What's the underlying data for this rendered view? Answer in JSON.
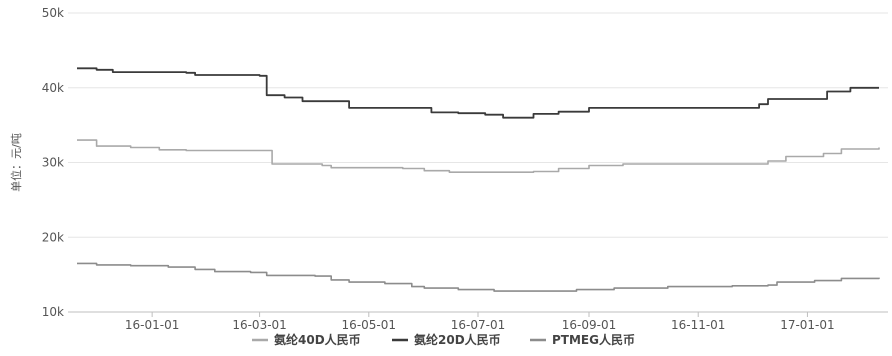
{
  "chart_data": {
    "type": "line",
    "title": "",
    "xlabel": "",
    "ylabel": "单位：元/吨",
    "ylim": [
      10000,
      50000
    ],
    "yticks": [
      {
        "value": 10000,
        "label": "10k"
      },
      {
        "value": 20000,
        "label": "20k"
      },
      {
        "value": 30000,
        "label": "30k"
      },
      {
        "value": 40000,
        "label": "40k"
      },
      {
        "value": 50000,
        "label": "50k"
      }
    ],
    "xlim": [
      "2015-11-15",
      "2017-02-15"
    ],
    "xticks": [
      {
        "value": "2016-01-01",
        "label": "16-01-01"
      },
      {
        "value": "2016-03-01",
        "label": "16-03-01"
      },
      {
        "value": "2016-05-01",
        "label": "16-05-01"
      },
      {
        "value": "2016-07-01",
        "label": "16-07-01"
      },
      {
        "value": "2016-09-01",
        "label": "16-09-01"
      },
      {
        "value": "2016-11-01",
        "label": "16-11-01"
      },
      {
        "value": "2017-01-01",
        "label": "17-01-01"
      }
    ],
    "grid": true,
    "legend_position": "bottom",
    "series": [
      {
        "name": "氨纶40D人民币",
        "color": "#a9a9a9",
        "line_width": 1.6,
        "points": [
          {
            "x": "2015-11-20",
            "y": 33000
          },
          {
            "x": "2015-12-01",
            "y": 32200
          },
          {
            "x": "2015-12-20",
            "y": 32000
          },
          {
            "x": "2016-01-05",
            "y": 31700
          },
          {
            "x": "2016-01-20",
            "y": 31600
          },
          {
            "x": "2016-02-20",
            "y": 31600
          },
          {
            "x": "2016-03-05",
            "y": 31600
          },
          {
            "x": "2016-03-08",
            "y": 29800
          },
          {
            "x": "2016-04-05",
            "y": 29600
          },
          {
            "x": "2016-04-10",
            "y": 29300
          },
          {
            "x": "2016-05-20",
            "y": 29200
          },
          {
            "x": "2016-06-01",
            "y": 28900
          },
          {
            "x": "2016-06-15",
            "y": 28700
          },
          {
            "x": "2016-07-20",
            "y": 28700
          },
          {
            "x": "2016-08-01",
            "y": 28800
          },
          {
            "x": "2016-08-15",
            "y": 29200
          },
          {
            "x": "2016-09-01",
            "y": 29600
          },
          {
            "x": "2016-09-20",
            "y": 29800
          },
          {
            "x": "2016-12-01",
            "y": 29800
          },
          {
            "x": "2016-12-10",
            "y": 30200
          },
          {
            "x": "2016-12-20",
            "y": 30800
          },
          {
            "x": "2017-01-10",
            "y": 31200
          },
          {
            "x": "2017-01-20",
            "y": 31800
          },
          {
            "x": "2017-02-10",
            "y": 32000
          }
        ]
      },
      {
        "name": "氨纶20D人民币",
        "color": "#3a3a3a",
        "line_width": 1.8,
        "points": [
          {
            "x": "2015-11-20",
            "y": 42600
          },
          {
            "x": "2015-12-01",
            "y": 42400
          },
          {
            "x": "2015-12-10",
            "y": 42100
          },
          {
            "x": "2016-01-20",
            "y": 42000
          },
          {
            "x": "2016-01-25",
            "y": 41700
          },
          {
            "x": "2016-02-25",
            "y": 41700
          },
          {
            "x": "2016-03-01",
            "y": 41600
          },
          {
            "x": "2016-03-05",
            "y": 39000
          },
          {
            "x": "2016-03-15",
            "y": 38700
          },
          {
            "x": "2016-03-25",
            "y": 38200
          },
          {
            "x": "2016-04-15",
            "y": 38200
          },
          {
            "x": "2016-04-20",
            "y": 37300
          },
          {
            "x": "2016-06-01",
            "y": 37300
          },
          {
            "x": "2016-06-05",
            "y": 36700
          },
          {
            "x": "2016-06-20",
            "y": 36600
          },
          {
            "x": "2016-07-05",
            "y": 36400
          },
          {
            "x": "2016-07-15",
            "y": 36000
          },
          {
            "x": "2016-07-28",
            "y": 36000
          },
          {
            "x": "2016-08-01",
            "y": 36500
          },
          {
            "x": "2016-08-15",
            "y": 36800
          },
          {
            "x": "2016-09-01",
            "y": 37300
          },
          {
            "x": "2016-11-30",
            "y": 37300
          },
          {
            "x": "2016-12-05",
            "y": 37800
          },
          {
            "x": "2016-12-10",
            "y": 38500
          },
          {
            "x": "2017-01-05",
            "y": 38500
          },
          {
            "x": "2017-01-12",
            "y": 39500
          },
          {
            "x": "2017-01-25",
            "y": 40000
          },
          {
            "x": "2017-02-10",
            "y": 40000
          }
        ]
      },
      {
        "name": "PTMEG人民币",
        "color": "#8c8c8c",
        "line_width": 1.6,
        "points": [
          {
            "x": "2015-11-20",
            "y": 16500
          },
          {
            "x": "2015-12-01",
            "y": 16300
          },
          {
            "x": "2015-12-20",
            "y": 16200
          },
          {
            "x": "2016-01-10",
            "y": 16000
          },
          {
            "x": "2016-01-25",
            "y": 15700
          },
          {
            "x": "2016-02-05",
            "y": 15400
          },
          {
            "x": "2016-02-25",
            "y": 15300
          },
          {
            "x": "2016-03-05",
            "y": 14900
          },
          {
            "x": "2016-04-01",
            "y": 14800
          },
          {
            "x": "2016-04-10",
            "y": 14300
          },
          {
            "x": "2016-04-20",
            "y": 14000
          },
          {
            "x": "2016-05-10",
            "y": 13800
          },
          {
            "x": "2016-05-25",
            "y": 13400
          },
          {
            "x": "2016-06-01",
            "y": 13200
          },
          {
            "x": "2016-06-20",
            "y": 13000
          },
          {
            "x": "2016-07-10",
            "y": 12800
          },
          {
            "x": "2016-08-10",
            "y": 12800
          },
          {
            "x": "2016-08-25",
            "y": 13000
          },
          {
            "x": "2016-09-15",
            "y": 13200
          },
          {
            "x": "2016-10-15",
            "y": 13400
          },
          {
            "x": "2016-11-20",
            "y": 13500
          },
          {
            "x": "2016-12-10",
            "y": 13600
          },
          {
            "x": "2016-12-15",
            "y": 14000
          },
          {
            "x": "2017-01-05",
            "y": 14200
          },
          {
            "x": "2017-01-20",
            "y": 14500
          },
          {
            "x": "2017-02-10",
            "y": 14600
          }
        ]
      }
    ]
  }
}
